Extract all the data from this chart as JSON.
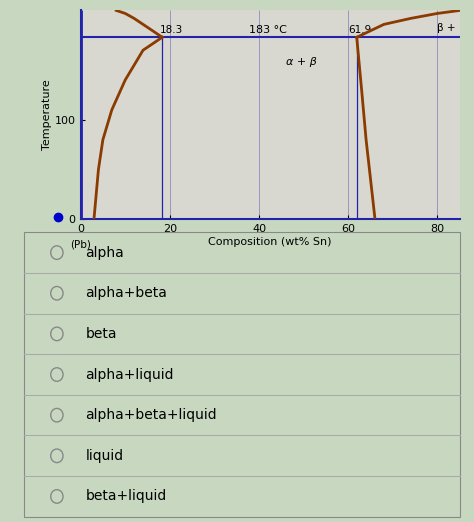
{
  "xlabel": "Composition (wt% Sn)",
  "ylabel": "Temperature",
  "temp_label": "183 °C",
  "comp_18": "18.3",
  "comp_61": "61.9",
  "alpha_beta_label": "α + β",
  "beta_label": "β +",
  "xlim": [
    0,
    85
  ],
  "ylim": [
    0,
    210
  ],
  "x_ticks": [
    0,
    20,
    40,
    60,
    80
  ],
  "y_ticks": [
    0,
    100
  ],
  "bg_color": "#c8d8c0",
  "diagram_bg": "#d8d8d0",
  "eutectic_temp": 183,
  "eutectic_comp1": 18.3,
  "eutectic_comp2": 61.9,
  "options": [
    "alpha",
    "alpha+beta",
    "beta",
    "alpha+liquid",
    "alpha+beta+liquid",
    "liquid",
    "beta+liquid"
  ],
  "dot_color": "#0000cc",
  "curve_color": "#8B3A00",
  "line_color": "#2222aa"
}
